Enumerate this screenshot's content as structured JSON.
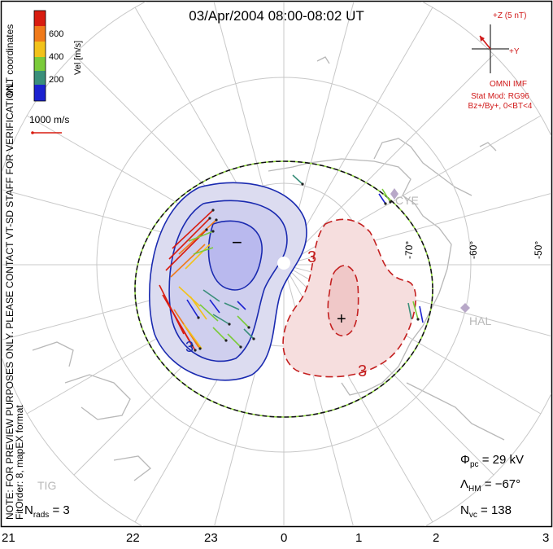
{
  "title": "03/Apr/2004 08:00-08:02 UT",
  "left_notes": {
    "coords": "MLT coordinates",
    "preview": "NOTE: FOR PREVIEW PURPOSES ONLY. PLEASE CONTACT VT-SD STAFF FOR VERIFICATION.",
    "fit": "FitOrder: 8, mapEX format"
  },
  "colorbar": {
    "label": "Vel [m/s]",
    "ticks": [
      "600",
      "400",
      "200"
    ],
    "colors": [
      "#1b22d0",
      "#3a8f7a",
      "#7acb3a",
      "#f2c21a",
      "#f07a1a",
      "#d81c10"
    ]
  },
  "vector_scale": "1000 m/s",
  "imf": {
    "z_label": "+Z (5 nT)",
    "y_label": "+Y",
    "source": "OMNI IMF",
    "model": "Stat Mod: RG96",
    "condition": "Bz+/By+, 0<BT<4"
  },
  "stations": [
    "CYE",
    "HAL",
    "TIG"
  ],
  "lat_labels": [
    "-70°",
    "-60°",
    "-50°"
  ],
  "contour_labels": [
    "3",
    "3",
    "3"
  ],
  "extrema": {
    "min": "−",
    "max": "+"
  },
  "stats": {
    "phi_sym": "Φ",
    "phi_sub": "pc",
    "phi_val": "=  29 kV",
    "lam_sym": "Λ",
    "lam_sub": "HM",
    "lam_val": "= −67°",
    "nvc_sym": "N",
    "nvc_sub": "vc",
    "nvc_val": "=  138",
    "nrads_sym": "N",
    "nrads_sub": "rads",
    "nrads_val": "=  3"
  },
  "mlt_labels": [
    "21",
    "22",
    "23",
    "0",
    "1",
    "2",
    "3"
  ]
}
